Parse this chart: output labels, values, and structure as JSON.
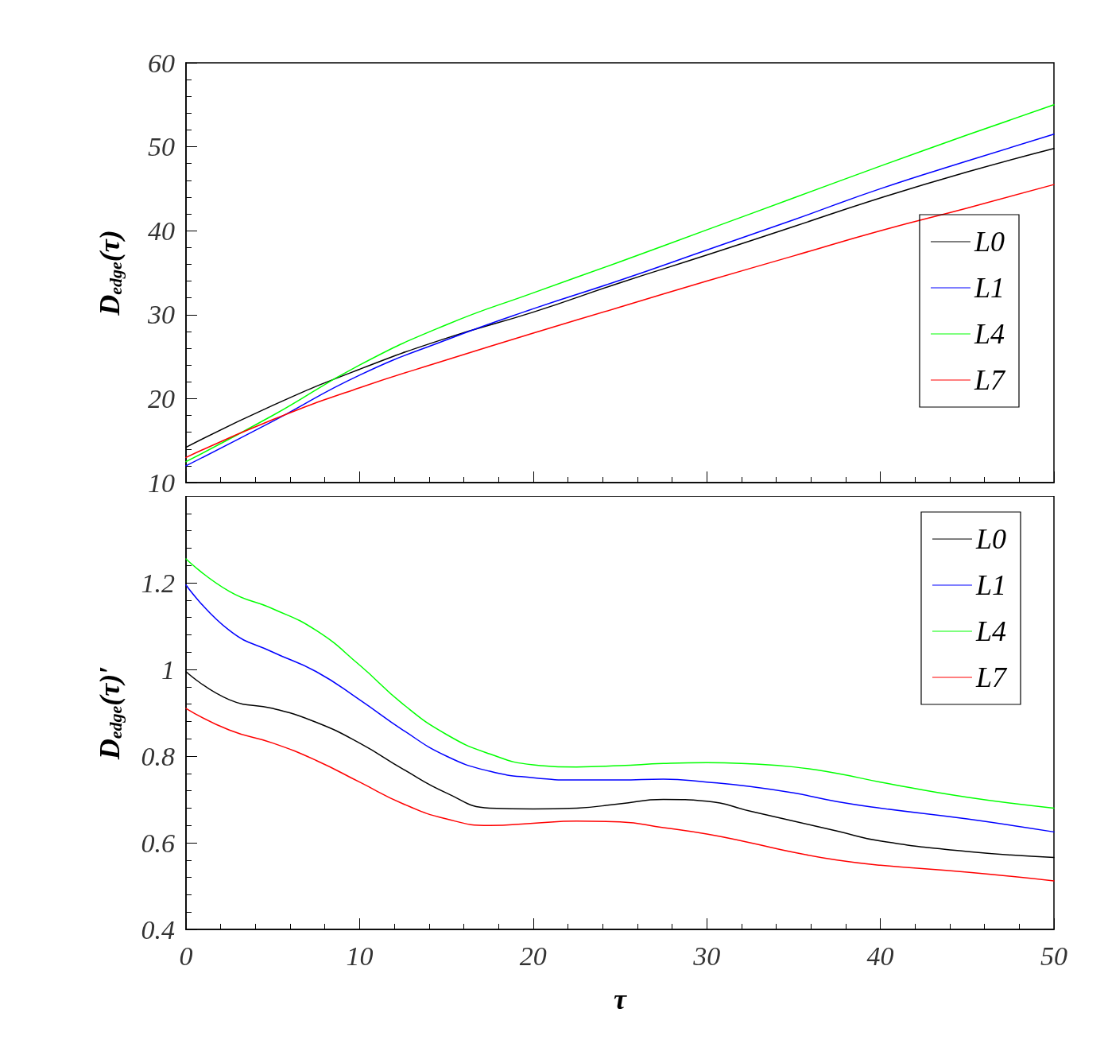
{
  "chart_data": [
    {
      "type": "line",
      "ylabel": "D$_{edge}$(τ)",
      "x": [
        0,
        5,
        10,
        15,
        20,
        25,
        30,
        35,
        40,
        45,
        50
      ],
      "xlim": [
        0,
        50
      ],
      "xticks": [
        0,
        10,
        20,
        30,
        40,
        50
      ],
      "ylim": [
        10,
        60
      ],
      "yticks": [
        10,
        20,
        30,
        40,
        50,
        60
      ],
      "tick_labels": "y",
      "legend": "right",
      "grid": false,
      "marker": "none",
      "line_style": "solid",
      "series": [
        {
          "name": "L0",
          "color": "#000000",
          "values": [
            14.2,
            19.2,
            23.5,
            27.2,
            30.3,
            33.8,
            37.1,
            40.5,
            43.9,
            47,
            49.8
          ]
        },
        {
          "name": "L1",
          "color": "#0000ff",
          "values": [
            12,
            17.3,
            22.8,
            27,
            30.7,
            34.1,
            37.7,
            41.3,
            45,
            48.3,
            51.5
          ]
        },
        {
          "name": "L4",
          "color": "#00ff00",
          "values": [
            12.5,
            18,
            24,
            28.8,
            32.6,
            36.3,
            40.1,
            43.9,
            47.7,
            51.4,
            55
          ]
        },
        {
          "name": "L7",
          "color": "#ff0000",
          "values": [
            13,
            17.5,
            21.3,
            24.6,
            27.8,
            30.9,
            34,
            37,
            40,
            42.7,
            45.5
          ]
        }
      ]
    },
    {
      "type": "line",
      "xlabel": "τ",
      "ylabel": "D$_{edge}$(τ)′",
      "x": [
        0,
        2.5,
        5,
        7.5,
        10,
        12.5,
        15,
        17.5,
        20,
        22.5,
        25,
        27.5,
        30,
        32.5,
        35,
        37.5,
        40,
        45,
        50
      ],
      "xlim": [
        0,
        50
      ],
      "xticks": [
        0,
        10,
        20,
        30,
        40,
        50
      ],
      "ylim": [
        0.4,
        1.4
      ],
      "yticks": [
        0.4,
        0.6,
        0.8,
        1,
        1.2
      ],
      "legend": "top right",
      "grid": false,
      "marker": "none",
      "line_style": "solid",
      "series": [
        {
          "name": "L0",
          "color": "#000000",
          "values": [
            0.995,
            0.93,
            0.91,
            0.878,
            0.83,
            0.77,
            0.715,
            0.68,
            0.678,
            0.68,
            0.69,
            0.7,
            0.696,
            0.673,
            0.65,
            0.627,
            0.604,
            0.58,
            0.566
          ]
        },
        {
          "name": "L1",
          "color": "#0000ff",
          "values": [
            1.195,
            1.09,
            1.04,
            0.995,
            0.93,
            0.86,
            0.8,
            0.765,
            0.75,
            0.745,
            0.745,
            0.747,
            0.74,
            0.73,
            0.715,
            0.695,
            0.68,
            0.655,
            0.625
          ]
        },
        {
          "name": "L4",
          "color": "#00ff00",
          "values": [
            1.255,
            1.18,
            1.14,
            1.09,
            1.01,
            0.92,
            0.85,
            0.805,
            0.78,
            0.775,
            0.778,
            0.783,
            0.785,
            0.782,
            0.775,
            0.76,
            0.74,
            0.705,
            0.68
          ]
        },
        {
          "name": "L7",
          "color": "#ff0000",
          "values": [
            0.91,
            0.86,
            0.83,
            0.79,
            0.74,
            0.69,
            0.655,
            0.64,
            0.645,
            0.65,
            0.648,
            0.635,
            0.62,
            0.6,
            0.578,
            0.56,
            0.548,
            0.532,
            0.512
          ]
        }
      ]
    }
  ]
}
